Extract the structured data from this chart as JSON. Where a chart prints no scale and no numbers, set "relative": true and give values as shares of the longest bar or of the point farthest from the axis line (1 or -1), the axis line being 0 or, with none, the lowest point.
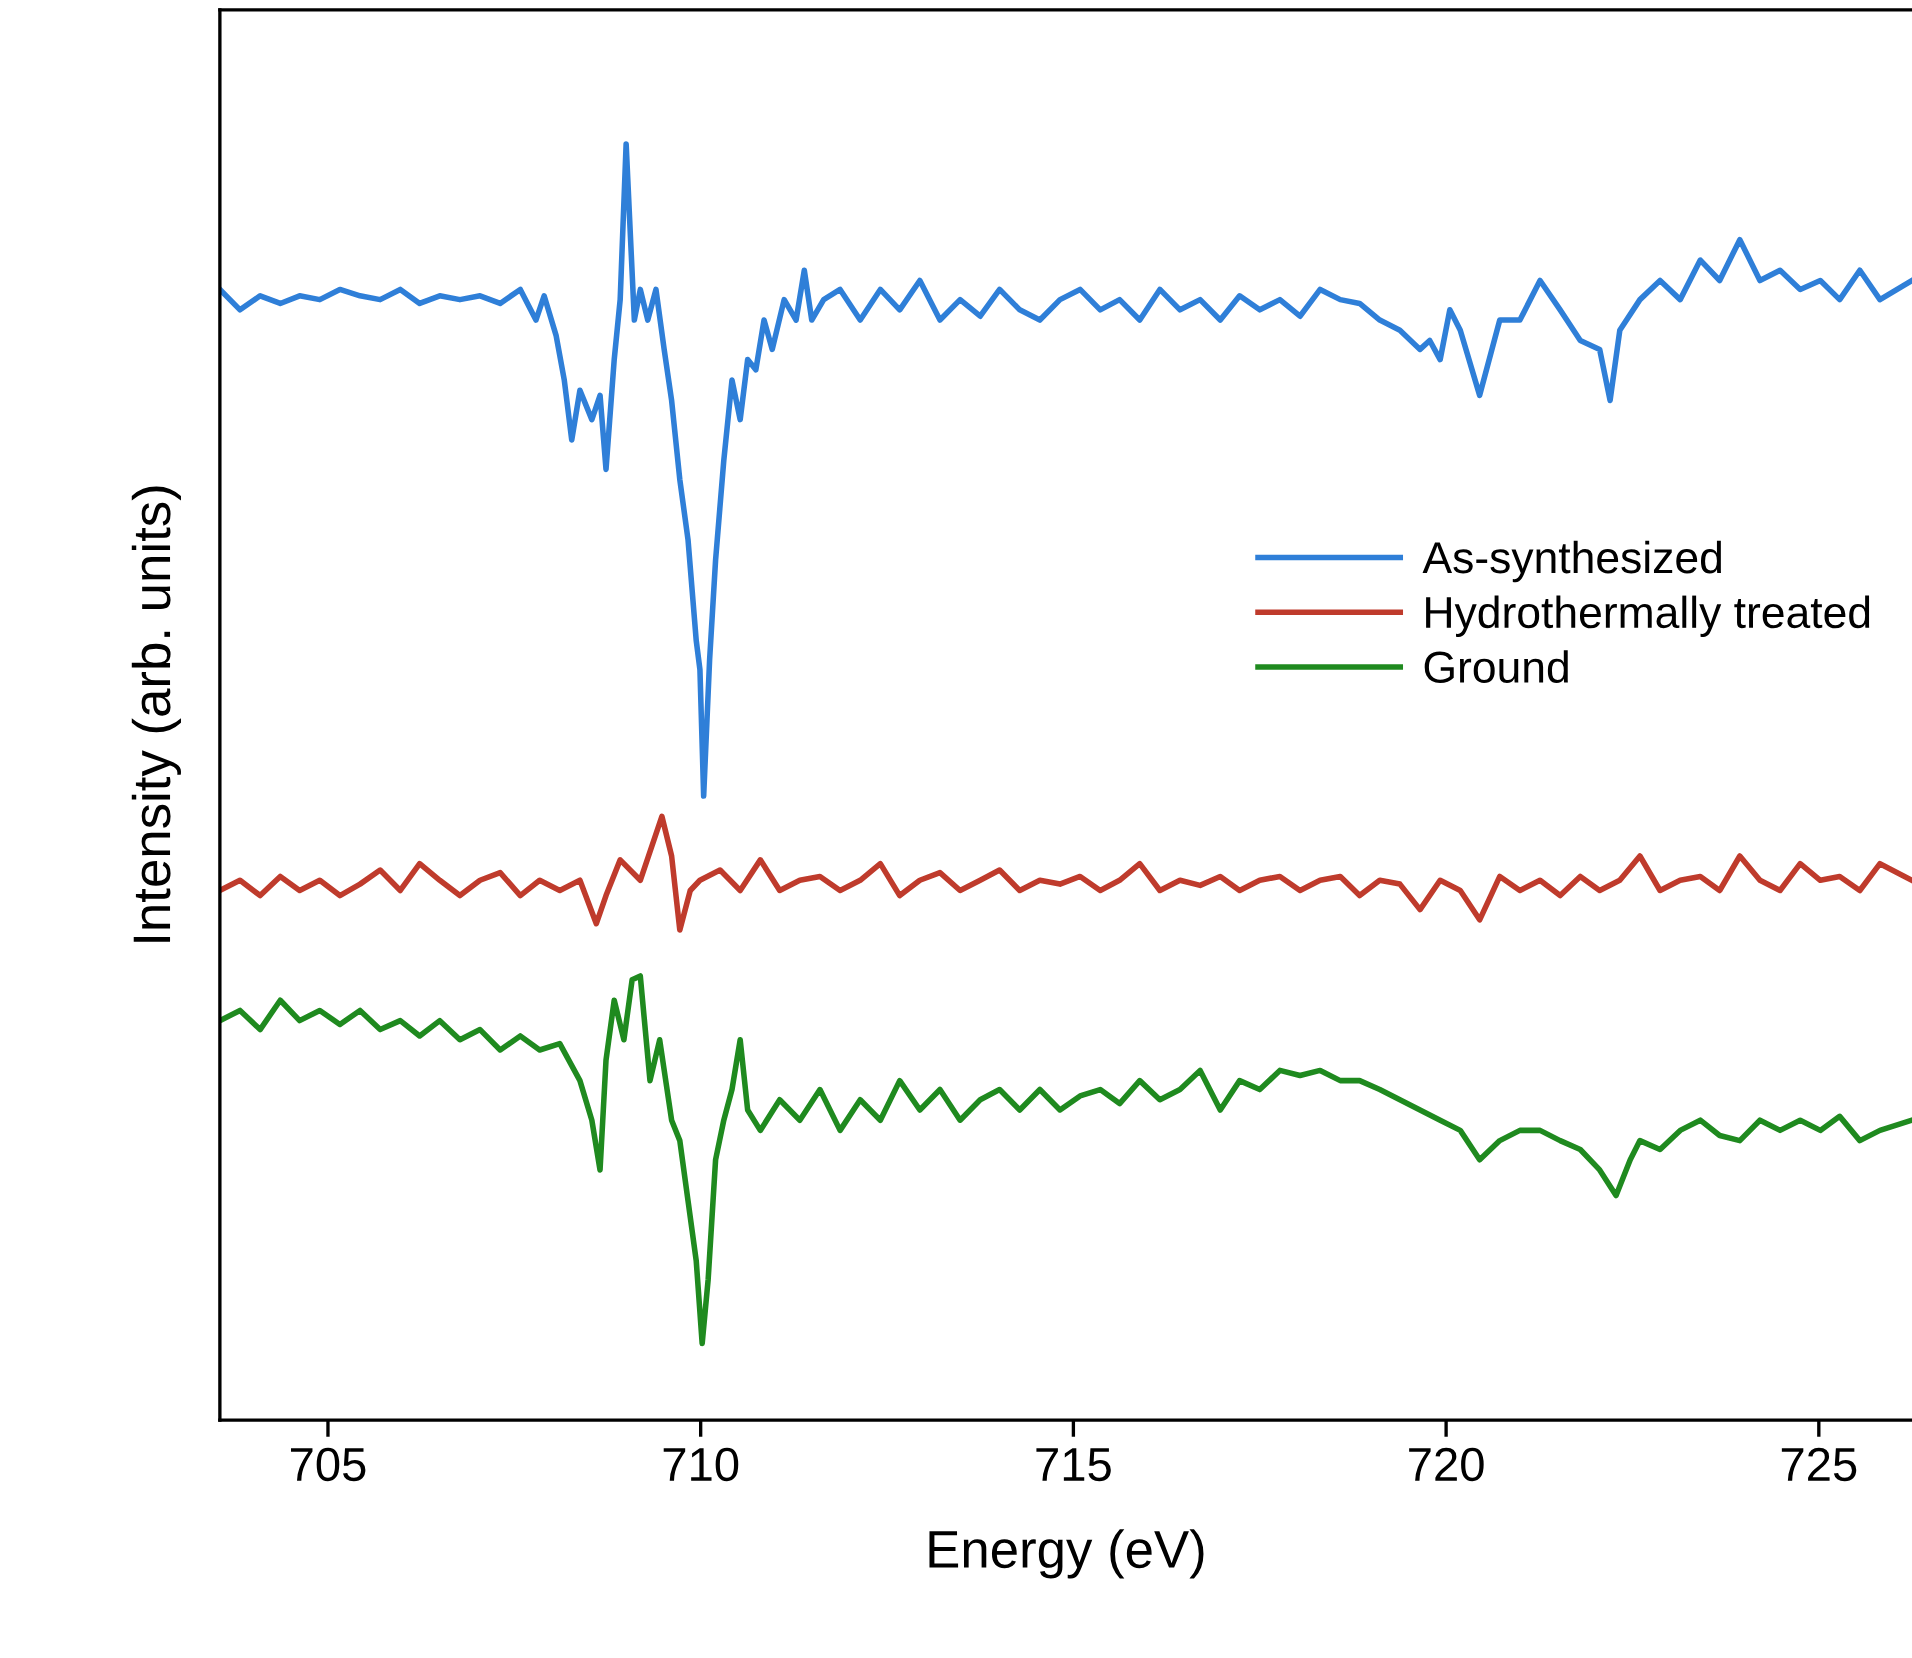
{
  "chart_data": {
    "type": "line",
    "relative": true,
    "xlabel": "Energy (eV)",
    "ylabel": "Intensity (arb. units)",
    "xlim": [
      703.55,
      726.25
    ],
    "xticks": [
      705,
      710,
      715,
      720,
      725
    ],
    "legend": "right",
    "grid": false,
    "marker": "none",
    "line_style": "solid",
    "tick_labels": "x",
    "series": [
      {
        "name": "As-synthesized",
        "color": "#2f7fd8",
        "x": [
          703.55,
          703.82,
          704.09,
          704.36,
          704.62,
          704.89,
          705.16,
          705.43,
          705.7,
          705.97,
          706.23,
          706.5,
          706.77,
          707.04,
          707.31,
          707.58,
          707.79,
          707.9,
          708.06,
          708.17,
          708.27,
          708.38,
          708.54,
          708.65,
          708.73,
          708.84,
          708.92,
          709.0,
          709.11,
          709.19,
          709.29,
          709.4,
          709.51,
          709.61,
          709.72,
          709.83,
          709.94,
          709.99,
          710.04,
          710.12,
          710.2,
          710.31,
          710.42,
          710.53,
          710.63,
          710.74,
          710.85,
          710.96,
          711.12,
          711.28,
          711.39,
          711.49,
          711.65,
          711.87,
          712.14,
          712.41,
          712.67,
          712.94,
          713.21,
          713.48,
          713.75,
          714.01,
          714.28,
          714.55,
          714.82,
          715.09,
          715.36,
          715.62,
          715.89,
          716.16,
          716.43,
          716.7,
          716.97,
          717.23,
          717.5,
          717.77,
          718.04,
          718.31,
          718.58,
          718.84,
          719.11,
          719.38,
          719.65,
          719.78,
          719.92,
          720.05,
          720.19,
          720.45,
          720.72,
          720.99,
          721.26,
          721.53,
          721.8,
          722.06,
          722.2,
          722.33,
          722.6,
          722.87,
          723.14,
          723.41,
          723.67,
          723.94,
          724.21,
          724.48,
          724.75,
          725.02,
          725.28,
          725.55,
          725.82,
          726.25
        ],
        "values": [
          0.886,
          0.87,
          0.881,
          0.875,
          0.881,
          0.878,
          0.886,
          0.881,
          0.878,
          0.886,
          0.875,
          0.881,
          0.878,
          0.881,
          0.875,
          0.886,
          0.862,
          0.881,
          0.85,
          0.815,
          0.768,
          0.807,
          0.784,
          0.803,
          0.745,
          0.831,
          0.878,
          1.0,
          0.862,
          0.886,
          0.862,
          0.886,
          0.839,
          0.799,
          0.737,
          0.69,
          0.611,
          0.588,
          0.489,
          0.596,
          0.674,
          0.752,
          0.815,
          0.784,
          0.831,
          0.823,
          0.862,
          0.839,
          0.878,
          0.862,
          0.901,
          0.862,
          0.878,
          0.886,
          0.862,
          0.886,
          0.87,
          0.893,
          0.862,
          0.878,
          0.865,
          0.886,
          0.87,
          0.862,
          0.878,
          0.886,
          0.87,
          0.878,
          0.862,
          0.886,
          0.87,
          0.878,
          0.862,
          0.881,
          0.87,
          0.878,
          0.865,
          0.886,
          0.878,
          0.875,
          0.862,
          0.854,
          0.839,
          0.846,
          0.831,
          0.87,
          0.854,
          0.803,
          0.862,
          0.862,
          0.893,
          0.87,
          0.846,
          0.839,
          0.799,
          0.854,
          0.878,
          0.893,
          0.878,
          0.909,
          0.893,
          0.925,
          0.893,
          0.901,
          0.886,
          0.893,
          0.878,
          0.901,
          0.878,
          0.893
        ]
      },
      {
        "name": "Hydrothermally treated",
        "color": "#bf3b2c",
        "x": [
          703.55,
          703.82,
          704.09,
          704.36,
          704.62,
          704.89,
          705.16,
          705.43,
          705.7,
          705.97,
          706.23,
          706.5,
          706.77,
          707.04,
          707.31,
          707.58,
          707.84,
          708.11,
          708.38,
          708.6,
          708.73,
          708.92,
          709.19,
          709.48,
          709.61,
          709.72,
          709.86,
          709.99,
          710.26,
          710.53,
          710.8,
          711.06,
          711.33,
          711.6,
          711.87,
          712.14,
          712.41,
          712.67,
          712.94,
          713.21,
          713.48,
          713.75,
          714.01,
          714.28,
          714.55,
          714.82,
          715.09,
          715.36,
          715.62,
          715.89,
          716.16,
          716.43,
          716.7,
          716.97,
          717.23,
          717.5,
          717.77,
          718.04,
          718.31,
          718.58,
          718.84,
          719.11,
          719.38,
          719.65,
          719.92,
          720.19,
          720.45,
          720.72,
          720.99,
          721.26,
          721.53,
          721.8,
          722.06,
          722.33,
          722.6,
          722.87,
          723.14,
          723.41,
          723.67,
          723.94,
          724.21,
          724.48,
          724.75,
          725.02,
          725.28,
          725.55,
          725.82,
          726.25
        ],
        "values": [
          0.415,
          0.423,
          0.411,
          0.426,
          0.415,
          0.423,
          0.411,
          0.42,
          0.431,
          0.415,
          0.436,
          0.423,
          0.411,
          0.423,
          0.429,
          0.411,
          0.423,
          0.415,
          0.423,
          0.389,
          0.411,
          0.439,
          0.423,
          0.473,
          0.442,
          0.384,
          0.415,
          0.423,
          0.431,
          0.415,
          0.439,
          0.415,
          0.423,
          0.426,
          0.415,
          0.423,
          0.436,
          0.411,
          0.423,
          0.429,
          0.415,
          0.423,
          0.431,
          0.415,
          0.423,
          0.42,
          0.426,
          0.415,
          0.423,
          0.436,
          0.415,
          0.423,
          0.419,
          0.426,
          0.415,
          0.423,
          0.426,
          0.415,
          0.423,
          0.426,
          0.411,
          0.423,
          0.42,
          0.4,
          0.423,
          0.415,
          0.392,
          0.426,
          0.415,
          0.423,
          0.411,
          0.426,
          0.415,
          0.423,
          0.442,
          0.415,
          0.423,
          0.426,
          0.415,
          0.442,
          0.423,
          0.415,
          0.436,
          0.423,
          0.426,
          0.415,
          0.436,
          0.423
        ]
      },
      {
        "name": "Ground",
        "color": "#1f8a1f",
        "x": [
          703.55,
          703.82,
          704.09,
          704.36,
          704.62,
          704.89,
          705.16,
          705.43,
          705.7,
          705.97,
          706.23,
          706.5,
          706.77,
          707.04,
          707.31,
          707.58,
          707.84,
          708.11,
          708.38,
          708.54,
          708.65,
          708.73,
          708.84,
          708.97,
          709.08,
          709.19,
          709.32,
          709.45,
          709.61,
          709.72,
          709.83,
          709.94,
          710.02,
          710.1,
          710.2,
          710.31,
          710.42,
          710.53,
          710.63,
          710.8,
          711.06,
          711.33,
          711.6,
          711.87,
          712.14,
          712.41,
          712.67,
          712.94,
          713.21,
          713.48,
          713.75,
          714.01,
          714.28,
          714.55,
          714.82,
          715.09,
          715.36,
          715.62,
          715.89,
          716.16,
          716.43,
          716.7,
          716.97,
          717.23,
          717.5,
          717.77,
          718.04,
          718.31,
          718.58,
          718.84,
          719.11,
          719.38,
          719.65,
          719.92,
          720.19,
          720.45,
          720.72,
          720.99,
          721.26,
          721.53,
          721.8,
          722.06,
          722.28,
          722.47,
          722.6,
          722.87,
          723.14,
          723.41,
          723.67,
          723.94,
          724.21,
          724.48,
          724.75,
          725.02,
          725.28,
          725.55,
          725.82,
          726.25
        ],
        "values": [
          0.313,
          0.321,
          0.306,
          0.329,
          0.313,
          0.321,
          0.31,
          0.321,
          0.306,
          0.313,
          0.301,
          0.313,
          0.298,
          0.306,
          0.29,
          0.301,
          0.29,
          0.295,
          0.266,
          0.235,
          0.196,
          0.282,
          0.329,
          0.298,
          0.345,
          0.348,
          0.266,
          0.298,
          0.235,
          0.219,
          0.172,
          0.125,
          0.06,
          0.11,
          0.204,
          0.235,
          0.259,
          0.298,
          0.243,
          0.227,
          0.251,
          0.235,
          0.259,
          0.227,
          0.251,
          0.235,
          0.266,
          0.243,
          0.259,
          0.235,
          0.251,
          0.259,
          0.243,
          0.259,
          0.243,
          0.254,
          0.259,
          0.248,
          0.266,
          0.251,
          0.259,
          0.274,
          0.243,
          0.266,
          0.259,
          0.274,
          0.27,
          0.274,
          0.266,
          0.266,
          0.259,
          0.251,
          0.243,
          0.235,
          0.227,
          0.204,
          0.219,
          0.227,
          0.227,
          0.219,
          0.212,
          0.196,
          0.176,
          0.204,
          0.219,
          0.212,
          0.227,
          0.235,
          0.223,
          0.219,
          0.235,
          0.227,
          0.235,
          0.227,
          0.238,
          0.219,
          0.227,
          0.235
        ]
      }
    ]
  }
}
